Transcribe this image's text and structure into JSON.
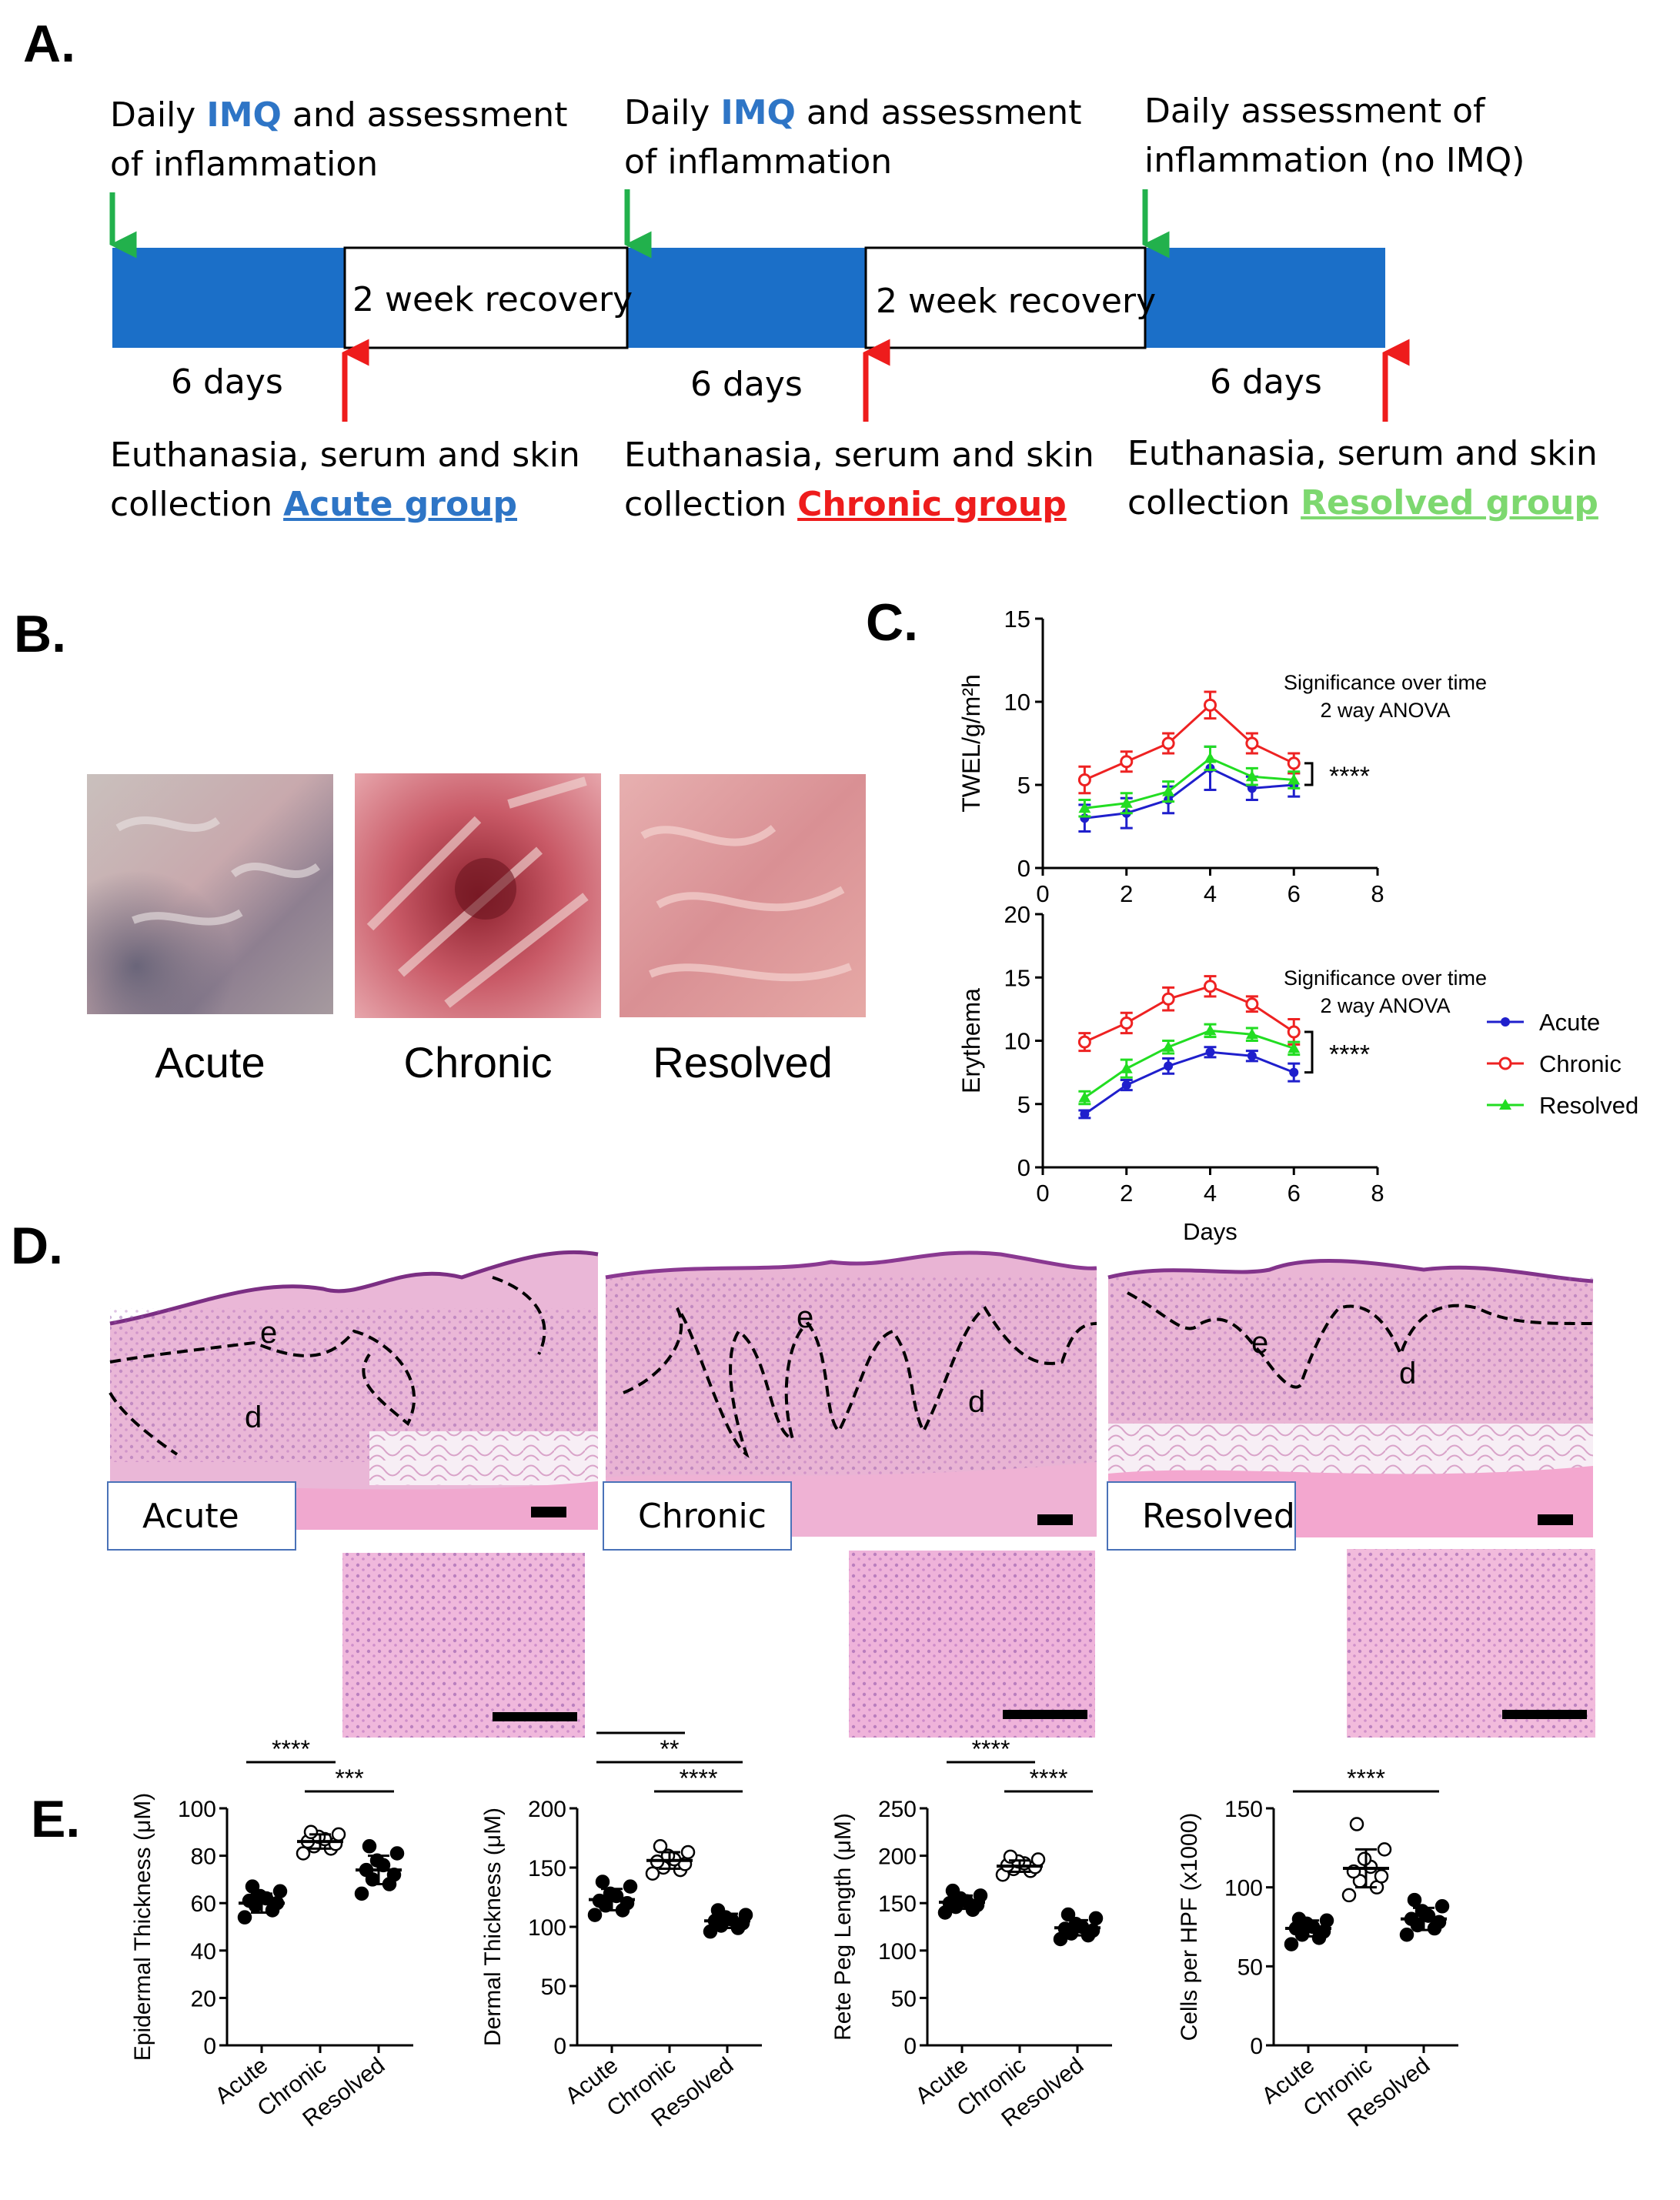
{
  "panels": {
    "a": "A.",
    "b": "B.",
    "c": "C.",
    "d": "D.",
    "e": "E."
  },
  "timeline": {
    "phase1": {
      "pre": "Daily ",
      "imq": "IMQ",
      "post": " and assessment",
      "line2": "of inflammation"
    },
    "phase2": {
      "pre": "Daily ",
      "imq": "IMQ",
      "post": " and assessment",
      "line2": "of inflammation"
    },
    "phase3": {
      "line1": "Daily assessment of",
      "line2": "inflammation (no IMQ)"
    },
    "recovery1": "2 week recovery",
    "recovery2": "2 week recovery",
    "days1": "6 days",
    "days2": "6 days",
    "days3": "6 days",
    "end1": {
      "line1": "Euthanasia, serum and skin",
      "pre": "collection ",
      "group": "Acute group"
    },
    "end2": {
      "line1": "Euthanasia, serum and skin",
      "pre": "collection ",
      "group": "Chronic group"
    },
    "end3": {
      "line1": "Euthanasia, serum and skin",
      "pre": "collection ",
      "group": "Resolved group"
    }
  },
  "photos": {
    "acute": "Acute",
    "chronic": "Chronic",
    "resolved": "Resolved"
  },
  "histology": {
    "acute": "Acute",
    "chronic": "Chronic",
    "resolved": "Resolved",
    "epidermis": "e",
    "dermis": "d"
  },
  "colors": {
    "acute": "#1f1fcc",
    "chronic": "#ee2222",
    "resolved": "#22dd22",
    "timeline_bar": "#1b6fc8",
    "imq": "#2E75C6",
    "acute_group": "#2E75C6",
    "chronic_group": "#ee1c1c",
    "resolved_group": "#7dd86f",
    "arrow_start": "#22b14c",
    "arrow_end": "#ee1c1c"
  },
  "chart_data": [
    {
      "type": "line",
      "panel": "C-top",
      "ylabel": "TWEL/g/m²h",
      "xlabel": "",
      "xlim": [
        0,
        8
      ],
      "ylim": [
        0,
        15
      ],
      "xticks": [
        0,
        2,
        4,
        6,
        8
      ],
      "yticks": [
        0,
        5,
        10,
        15
      ],
      "annotation": [
        "Significance over time",
        "2 way ANOVA"
      ],
      "significance": "****",
      "x": [
        1,
        2,
        3,
        4,
        5,
        6
      ],
      "series": [
        {
          "name": "Acute",
          "values": [
            3.0,
            3.3,
            4.1,
            6.0,
            4.8,
            5.0
          ],
          "err": [
            0.8,
            0.9,
            0.8,
            1.3,
            0.7,
            0.7
          ]
        },
        {
          "name": "Chronic",
          "values": [
            5.3,
            6.4,
            7.5,
            9.8,
            7.5,
            6.3
          ],
          "err": [
            0.8,
            0.6,
            0.6,
            0.8,
            0.6,
            0.6
          ]
        },
        {
          "name": "Resolved",
          "values": [
            3.6,
            3.9,
            4.6,
            6.6,
            5.5,
            5.3
          ],
          "err": [
            0.5,
            0.6,
            0.6,
            0.7,
            0.5,
            0.5
          ]
        }
      ]
    },
    {
      "type": "line",
      "panel": "C-bottom",
      "ylabel": "Erythema",
      "xlabel": "Days",
      "xlim": [
        0,
        8
      ],
      "ylim": [
        0,
        20
      ],
      "xticks": [
        0,
        2,
        4,
        6,
        8
      ],
      "yticks": [
        0,
        5,
        10,
        15,
        20
      ],
      "annotation": [
        "Significance over time",
        "2 way ANOVA"
      ],
      "significance": "****",
      "x": [
        1,
        2,
        3,
        4,
        5,
        6
      ],
      "series": [
        {
          "name": "Acute",
          "values": [
            4.2,
            6.5,
            8.0,
            9.1,
            8.8,
            7.5
          ],
          "err": [
            0.3,
            0.4,
            0.6,
            0.4,
            0.4,
            0.7
          ]
        },
        {
          "name": "Chronic",
          "values": [
            9.9,
            11.4,
            13.3,
            14.3,
            12.9,
            10.7
          ],
          "err": [
            0.7,
            0.8,
            0.9,
            0.8,
            0.6,
            1.0
          ]
        },
        {
          "name": "Resolved",
          "values": [
            5.5,
            7.8,
            9.5,
            10.8,
            10.5,
            9.4
          ],
          "err": [
            0.5,
            0.7,
            0.5,
            0.5,
            0.5,
            0.5
          ]
        }
      ],
      "legend": [
        "Acute",
        "Chronic",
        "Resolved"
      ]
    },
    {
      "type": "scatter",
      "panel": "E-1",
      "ylabel": "Epidermal Thickness (μM)",
      "categories": [
        "Acute",
        "Chronic",
        "Resolved"
      ],
      "ylim": [
        0,
        100
      ],
      "yticks": [
        0,
        20,
        40,
        60,
        80,
        100
      ],
      "groups": [
        {
          "name": "Acute",
          "values": [
            54,
            57,
            59,
            60,
            61,
            62,
            63,
            65,
            67
          ],
          "mean": 60,
          "sd": 4
        },
        {
          "name": "Chronic",
          "values": [
            81,
            83,
            84,
            85,
            86,
            87,
            88,
            89,
            90
          ],
          "mean": 86,
          "sd": 3
        },
        {
          "name": "Resolved",
          "values": [
            64,
            68,
            70,
            72,
            74,
            76,
            78,
            81,
            84
          ],
          "mean": 74,
          "sd": 6
        }
      ],
      "brackets": [
        {
          "from": 0,
          "to": 1,
          "label": "****",
          "level": 1
        },
        {
          "from": 1,
          "to": 2,
          "label": "***",
          "level": 0
        }
      ]
    },
    {
      "type": "scatter",
      "panel": "E-2",
      "ylabel": "Dermal Thickness (μM)",
      "categories": [
        "Acute",
        "Chronic",
        "Resolved"
      ],
      "ylim": [
        0,
        200
      ],
      "yticks": [
        0,
        50,
        100,
        150,
        200
      ],
      "groups": [
        {
          "name": "Acute",
          "values": [
            110,
            114,
            118,
            120,
            122,
            126,
            128,
            134,
            138
          ],
          "mean": 123,
          "sd": 9
        },
        {
          "name": "Chronic",
          "values": [
            145,
            148,
            150,
            153,
            155,
            157,
            160,
            163,
            168
          ],
          "mean": 156,
          "sd": 7
        },
        {
          "name": "Resolved",
          "values": [
            96,
            99,
            101,
            103,
            105,
            106,
            108,
            110,
            114
          ],
          "mean": 105,
          "sd": 6
        }
      ],
      "brackets": [
        {
          "from": 0,
          "to": 1,
          "label": "****",
          "level": 2
        },
        {
          "from": 0,
          "to": 2,
          "label": "**",
          "level": 1
        },
        {
          "from": 1,
          "to": 2,
          "label": "****",
          "level": 0
        }
      ]
    },
    {
      "type": "scatter",
      "panel": "E-3",
      "ylabel": "Rete Peg Length (μM)",
      "categories": [
        "Acute",
        "Chronic",
        "Resolved"
      ],
      "ylim": [
        0,
        250
      ],
      "yticks": [
        0,
        50,
        100,
        150,
        200,
        250
      ],
      "groups": [
        {
          "name": "Acute",
          "values": [
            140,
            143,
            146,
            148,
            150,
            152,
            155,
            158,
            163
          ],
          "mean": 151,
          "sd": 7
        },
        {
          "name": "Chronic",
          "values": [
            180,
            184,
            186,
            188,
            190,
            192,
            194,
            196,
            199
          ],
          "mean": 189,
          "sd": 6
        },
        {
          "name": "Resolved",
          "values": [
            112,
            116,
            118,
            121,
            123,
            125,
            128,
            134,
            138
          ],
          "mean": 124,
          "sd": 8
        }
      ],
      "brackets": [
        {
          "from": 0,
          "to": 1,
          "label": "****",
          "level": 1
        },
        {
          "from": 1,
          "to": 2,
          "label": "****",
          "level": 0
        }
      ]
    },
    {
      "type": "scatter",
      "panel": "E-4",
      "ylabel": "Cells per HPF (x1000)",
      "categories": [
        "Acute",
        "Chronic",
        "Resolved"
      ],
      "ylim": [
        0,
        150
      ],
      "yticks": [
        0,
        50,
        100,
        150
      ],
      "groups": [
        {
          "name": "Acute",
          "values": [
            64,
            68,
            70,
            72,
            74,
            75,
            77,
            79,
            80
          ],
          "mean": 74,
          "sd": 5
        },
        {
          "name": "Chronic",
          "values": [
            95,
            100,
            104,
            107,
            110,
            113,
            118,
            124,
            140
          ],
          "mean": 112,
          "sd": 12
        },
        {
          "name": "Resolved",
          "values": [
            70,
            74,
            76,
            78,
            80,
            82,
            85,
            88,
            92
          ],
          "mean": 80,
          "sd": 7
        }
      ],
      "brackets": [
        {
          "from": 0,
          "to": 2,
          "label": "****",
          "level": 0
        }
      ]
    }
  ]
}
